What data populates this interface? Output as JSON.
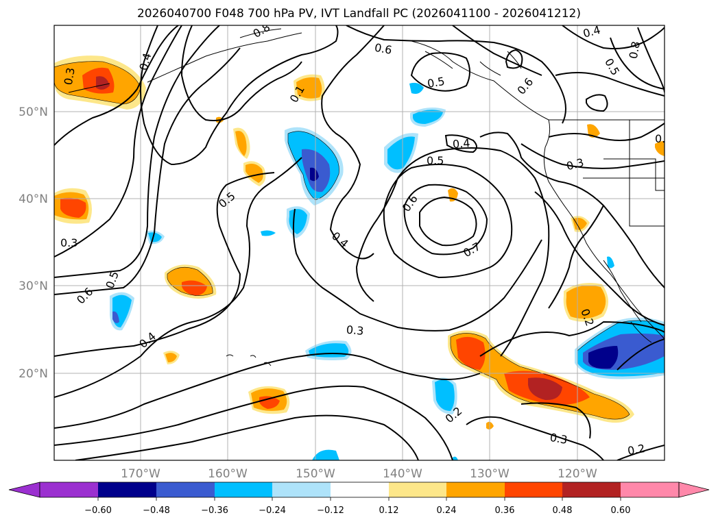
{
  "title": "2026040700 F048 700 hPa PV, IVT Landfall PC (2026041100 - 2026041212)",
  "colors": {
    "neg_060_below": "#9b30d0",
    "neg_060": "#00008b",
    "neg_048": "#3a5bd0",
    "neg_036": "#00bfff",
    "neg_024": "#aee3fa",
    "neutral": "#ffffff",
    "pos_012": "#fde78a",
    "pos_024": "#ffa500",
    "pos_036": "#ff4500",
    "pos_048": "#b22222",
    "pos_060_above": "#ff88aa",
    "contour": "#000000",
    "grid": "#b0b0b0"
  },
  "lat_labels": [
    "50°N",
    "40°N",
    "30°N",
    "20°N"
  ],
  "lon_labels": [
    "170°W",
    "160°W",
    "150°W",
    "140°W",
    "130°W",
    "120°W"
  ],
  "colorbar_ticks": [
    "−0.60",
    "−0.48",
    "−0.36",
    "−0.24",
    "−0.12",
    "0.12",
    "0.24",
    "0.36",
    "0.48",
    "0.60"
  ],
  "contour_labels": [
    "0.3",
    "0.4",
    "0.8",
    "0.6",
    "0.5",
    "0.6",
    "0.4",
    "0.5",
    "0.8",
    "0.1",
    "0.4",
    "0.5",
    "0.3",
    "0.5",
    "0.6",
    "0.7",
    "0.4",
    "0.3",
    "0.6",
    "0.5",
    "0.4",
    "0.3",
    "0.2",
    "0.2",
    "0.3",
    "0.2",
    "0.1"
  ]
}
